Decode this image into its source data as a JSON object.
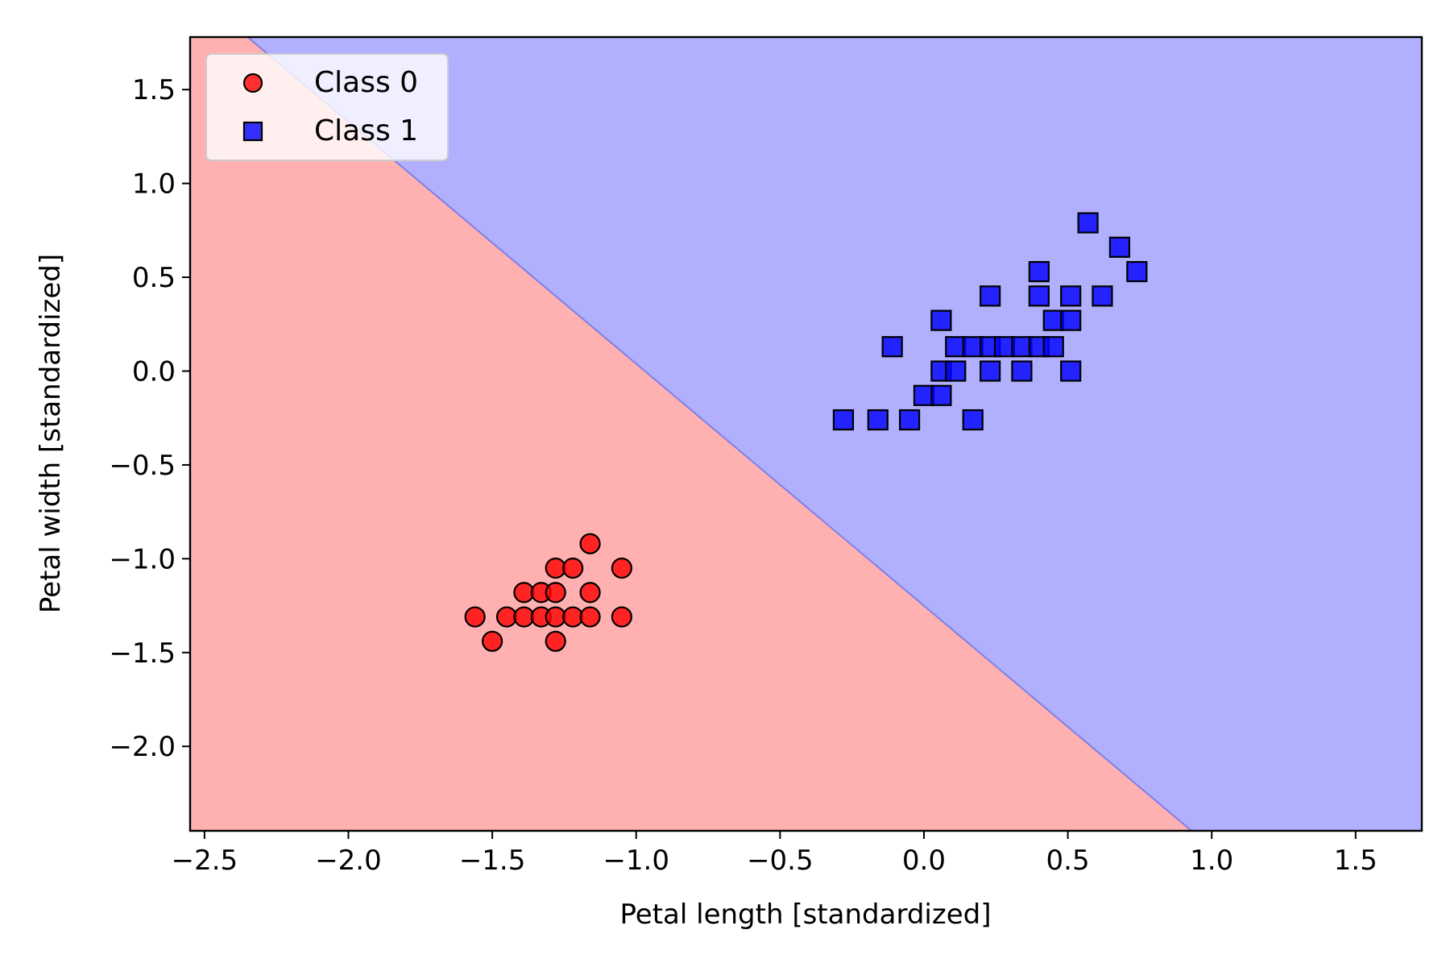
{
  "chart_data": {
    "type": "scatter",
    "title": "",
    "xlabel": "Petal length [standardized]",
    "ylabel": "Petal width [standardized]",
    "xlim": [
      -2.55,
      1.73
    ],
    "ylim": [
      -2.45,
      1.78
    ],
    "xticks": [
      {
        "value": -2.5,
        "label": "−2.5"
      },
      {
        "value": -2.0,
        "label": "−2.0"
      },
      {
        "value": -1.5,
        "label": "−1.5"
      },
      {
        "value": -1.0,
        "label": "−1.0"
      },
      {
        "value": -0.5,
        "label": "−0.5"
      },
      {
        "value": 0.0,
        "label": "0.0"
      },
      {
        "value": 0.5,
        "label": "0.5"
      },
      {
        "value": 1.0,
        "label": "1.0"
      },
      {
        "value": 1.5,
        "label": "1.5"
      }
    ],
    "yticks": [
      {
        "value": 1.5,
        "label": "1.5"
      },
      {
        "value": 1.0,
        "label": "1.0"
      },
      {
        "value": 0.5,
        "label": "0.5"
      },
      {
        "value": 0.0,
        "label": "0.0"
      },
      {
        "value": -0.5,
        "label": "−0.5"
      },
      {
        "value": -1.0,
        "label": "−1.0"
      },
      {
        "value": -1.5,
        "label": "−1.5"
      },
      {
        "value": -2.0,
        "label": "−2.0"
      }
    ],
    "grid": false,
    "legend_position": "top-left",
    "decision_boundary": {
      "points": [
        [
          -2.35,
          1.78
        ],
        [
          0.93,
          -2.45
        ]
      ],
      "region_colors": {
        "class_0": "#ffb0b0",
        "class_1": "#b0b0ff"
      }
    },
    "series": [
      {
        "name": "Class 0",
        "marker": "circle",
        "color": "#ff0000",
        "points": [
          [
            -1.56,
            -1.31
          ],
          [
            -1.5,
            -1.44
          ],
          [
            -1.45,
            -1.31
          ],
          [
            -1.39,
            -1.18
          ],
          [
            -1.39,
            -1.31
          ],
          [
            -1.33,
            -1.18
          ],
          [
            -1.33,
            -1.31
          ],
          [
            -1.28,
            -1.05
          ],
          [
            -1.28,
            -1.18
          ],
          [
            -1.28,
            -1.31
          ],
          [
            -1.28,
            -1.44
          ],
          [
            -1.22,
            -1.05
          ],
          [
            -1.22,
            -1.31
          ],
          [
            -1.16,
            -0.92
          ],
          [
            -1.16,
            -1.18
          ],
          [
            -1.16,
            -1.31
          ],
          [
            -1.05,
            -1.05
          ],
          [
            -1.05,
            -1.31
          ]
        ]
      },
      {
        "name": "Class 1",
        "marker": "square",
        "color": "#0000ff",
        "points": [
          [
            -0.28,
            -0.26
          ],
          [
            -0.16,
            -0.26
          ],
          [
            -0.05,
            -0.26
          ],
          [
            0.17,
            -0.26
          ],
          [
            0.0,
            -0.13
          ],
          [
            0.06,
            -0.13
          ],
          [
            0.06,
            0.0
          ],
          [
            0.11,
            0.0
          ],
          [
            0.23,
            0.0
          ],
          [
            0.34,
            0.0
          ],
          [
            0.51,
            0.0
          ],
          [
            -0.11,
            0.13
          ],
          [
            0.11,
            0.13
          ],
          [
            0.17,
            0.13
          ],
          [
            0.23,
            0.13
          ],
          [
            0.28,
            0.13
          ],
          [
            0.34,
            0.13
          ],
          [
            0.4,
            0.13
          ],
          [
            0.45,
            0.13
          ],
          [
            0.06,
            0.27
          ],
          [
            0.45,
            0.27
          ],
          [
            0.51,
            0.27
          ],
          [
            0.23,
            0.4
          ],
          [
            0.4,
            0.4
          ],
          [
            0.51,
            0.4
          ],
          [
            0.62,
            0.4
          ],
          [
            0.4,
            0.53
          ],
          [
            0.74,
            0.53
          ],
          [
            0.68,
            0.66
          ],
          [
            0.57,
            0.79
          ]
        ]
      }
    ]
  }
}
